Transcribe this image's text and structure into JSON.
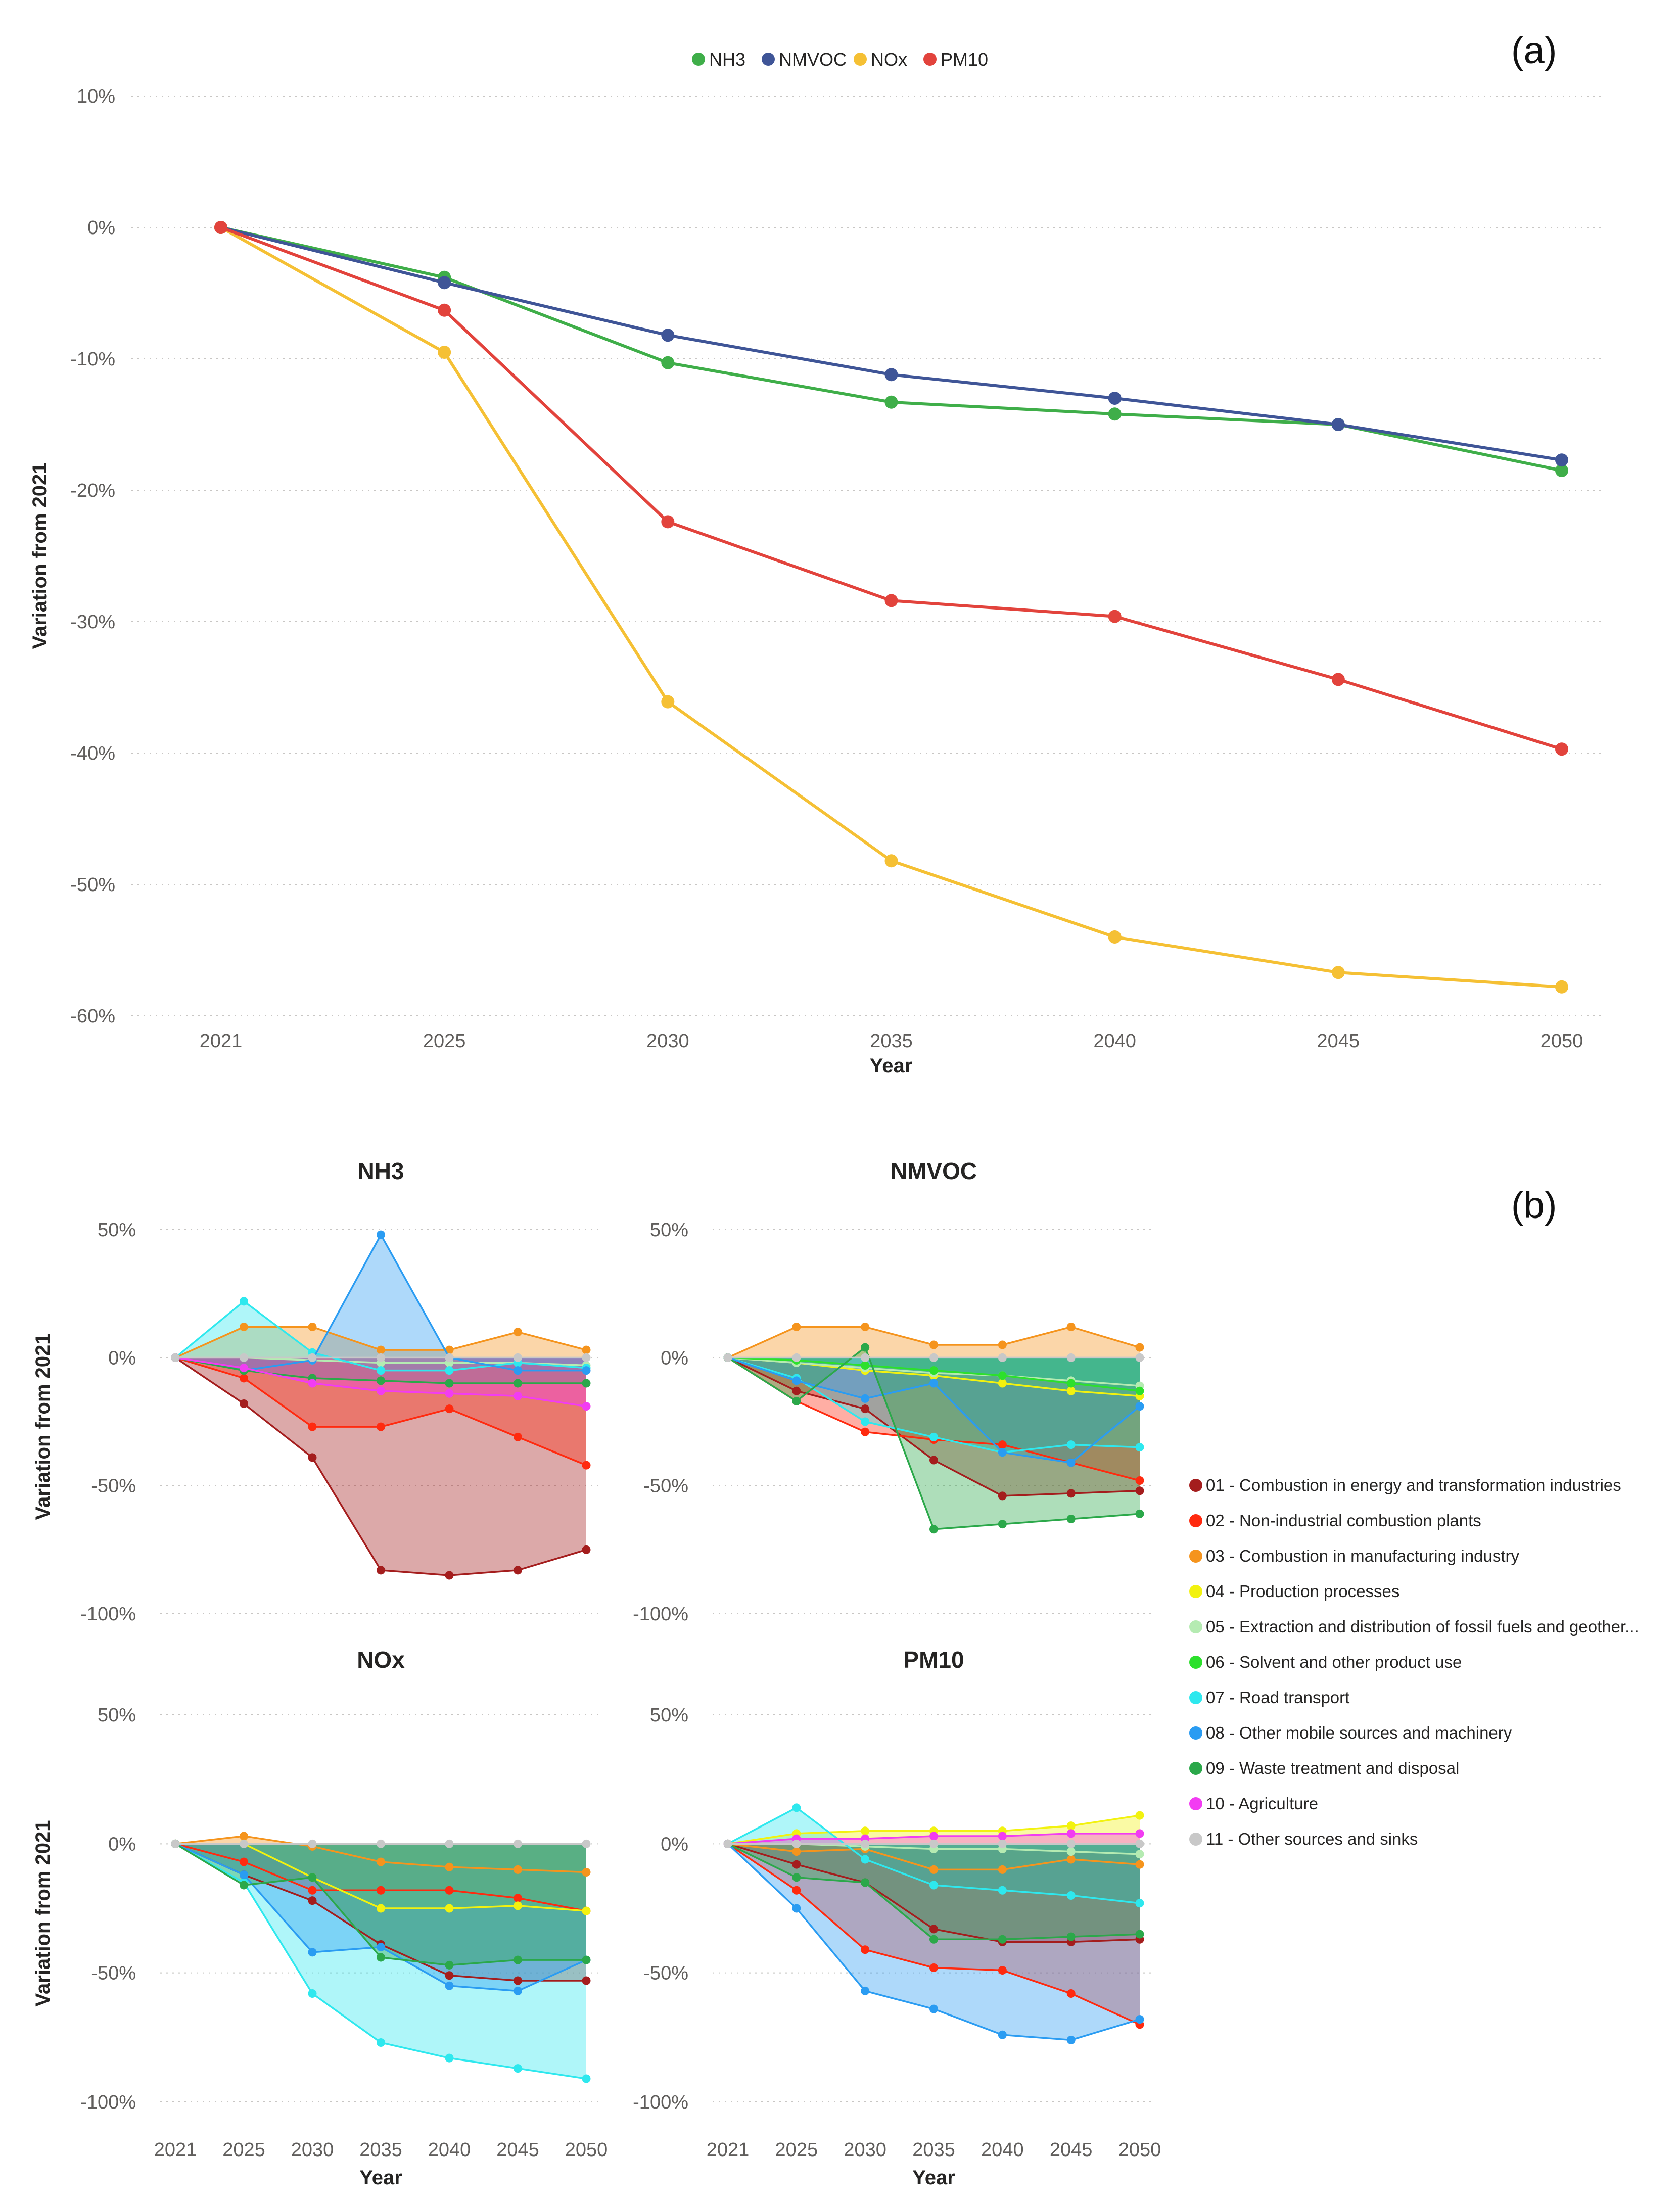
{
  "chart_data": [
    {
      "id": "a",
      "panel_label": "(a)",
      "type": "line",
      "title": "",
      "xlabel": "Year",
      "ylabel": "Variation from 2021",
      "categories": [
        "2021",
        "2025",
        "2030",
        "2035",
        "2040",
        "2045",
        "2050"
      ],
      "ylim": [
        -60,
        10
      ],
      "yticks": [
        10,
        0,
        -10,
        -20,
        -30,
        -40,
        -50,
        -60
      ],
      "ytick_labels": [
        "10%",
        "0%",
        "-10%",
        "-20%",
        "-30%",
        "-40%",
        "-50%",
        "-60%"
      ],
      "grid": true,
      "legend_position": "top-center",
      "series": [
        {
          "name": "NH3",
          "color": "#3fae49",
          "values": [
            0,
            -3.8,
            -10.3,
            -13.3,
            -14.2,
            -15.0,
            -18.5
          ]
        },
        {
          "name": "NMVOC",
          "color": "#3f5597",
          "values": [
            0,
            -4.2,
            -8.2,
            -11.2,
            -13.0,
            -15.0,
            -17.7
          ]
        },
        {
          "name": "NOx",
          "color": "#f5c034",
          "values": [
            0,
            -9.5,
            -36.1,
            -48.2,
            -54.0,
            -56.7,
            -57.8
          ]
        },
        {
          "name": "PM10",
          "color": "#e2433c",
          "values": [
            0,
            -6.3,
            -22.4,
            -28.4,
            -29.6,
            -34.4,
            -39.7
          ]
        }
      ]
    },
    {
      "id": "b",
      "panel_label": "(b)",
      "type": "area",
      "xlabel": "Year",
      "ylabel": "Variation from 2021",
      "categories": [
        "2021",
        "2025",
        "2030",
        "2035",
        "2040",
        "2045",
        "2050"
      ],
      "ylim": [
        -100,
        50
      ],
      "yticks": [
        50,
        0,
        -50,
        -100
      ],
      "ytick_labels": [
        "50%",
        "0%",
        "-50%",
        "-100%"
      ],
      "grid": true,
      "legend_position": "right",
      "sectors": [
        {
          "name": "01 - Combustion in energy and transformation industries",
          "color": "#a41d1d"
        },
        {
          "name": "02 - Non-industrial combustion plants",
          "color": "#ff2a0f"
        },
        {
          "name": "03 - Combustion in manufacturing industry",
          "color": "#f5941d"
        },
        {
          "name": "04 - Production processes",
          "color": "#f2f20f"
        },
        {
          "name": "05 - Extraction and distribution of fossil fuels and geother...",
          "color": "#b5ebb2"
        },
        {
          "name": "06 - Solvent and other product use",
          "color": "#2ce02c"
        },
        {
          "name": "07 - Road transport",
          "color": "#2ee8ee"
        },
        {
          "name": "08 - Other mobile sources and machinery",
          "color": "#2a9cf2"
        },
        {
          "name": "09 - Waste treatment and disposal",
          "color": "#2ba84a"
        },
        {
          "name": "10 - Agriculture",
          "color": "#f23cf2"
        },
        {
          "name": "11 - Other sources and sinks",
          "color": "#c8c8c8"
        }
      ],
      "panels": [
        {
          "title": "NH3",
          "series": [
            {
              "sector": 0,
              "values": [
                0,
                -18,
                -39,
                -83,
                -85,
                -83,
                -75
              ]
            },
            {
              "sector": 1,
              "values": [
                0,
                -8,
                -27,
                -27,
                -20,
                -31,
                -42
              ]
            },
            {
              "sector": 2,
              "values": [
                0,
                12,
                12,
                3,
                3,
                10,
                3
              ]
            },
            {
              "sector": 4,
              "values": [
                0,
                0,
                -1,
                -2,
                -2,
                -2,
                -3
              ]
            },
            {
              "sector": 6,
              "values": [
                0,
                22,
                2,
                -5,
                -5,
                -2,
                -4
              ]
            },
            {
              "sector": 7,
              "values": [
                0,
                -5,
                -1,
                48,
                0,
                -5,
                -5
              ]
            },
            {
              "sector": 8,
              "values": [
                0,
                -5,
                -8,
                -9,
                -10,
                -10,
                -10
              ]
            },
            {
              "sector": 9,
              "values": [
                0,
                -4,
                -10,
                -13,
                -14,
                -15,
                -19
              ]
            },
            {
              "sector": 10,
              "values": [
                0,
                0,
                0,
                0,
                0,
                0,
                0
              ]
            }
          ]
        },
        {
          "title": "NMVOC",
          "series": [
            {
              "sector": 0,
              "values": [
                0,
                -13,
                -20,
                -40,
                -54,
                -53,
                -52
              ]
            },
            {
              "sector": 1,
              "values": [
                0,
                -17,
                -29,
                -32,
                -34,
                -41,
                -48
              ]
            },
            {
              "sector": 2,
              "values": [
                0,
                12,
                12,
                5,
                5,
                12,
                4
              ]
            },
            {
              "sector": 3,
              "values": [
                0,
                -2,
                -5,
                -7,
                -10,
                -13,
                -15
              ]
            },
            {
              "sector": 4,
              "values": [
                0,
                -2,
                -4,
                -6,
                -7,
                -9,
                -11
              ]
            },
            {
              "sector": 5,
              "values": [
                0,
                -1,
                -3,
                -5,
                -7,
                -10,
                -13
              ]
            },
            {
              "sector": 6,
              "values": [
                0,
                -8,
                -25,
                -31,
                -37,
                -34,
                -35
              ]
            },
            {
              "sector": 7,
              "values": [
                0,
                -9,
                -16,
                -10,
                -37,
                -41,
                -19
              ]
            },
            {
              "sector": 8,
              "values": [
                0,
                -17,
                4,
                -67,
                -65,
                -63,
                -61
              ]
            },
            {
              "sector": 10,
              "values": [
                0,
                0,
                0,
                0,
                0,
                0,
                0
              ]
            }
          ]
        },
        {
          "title": "NOx",
          "series": [
            {
              "sector": 0,
              "values": [
                0,
                -12,
                -22,
                -39,
                -51,
                -53,
                -53
              ]
            },
            {
              "sector": 1,
              "values": [
                0,
                -7,
                -18,
                -18,
                -18,
                -21,
                -26
              ]
            },
            {
              "sector": 2,
              "values": [
                0,
                3,
                -1,
                -7,
                -9,
                -10,
                -11
              ]
            },
            {
              "sector": 3,
              "values": [
                0,
                0,
                -13,
                -25,
                -25,
                -24,
                -26
              ]
            },
            {
              "sector": 6,
              "values": [
                0,
                -15,
                -58,
                -77,
                -83,
                -87,
                -91
              ]
            },
            {
              "sector": 7,
              "values": [
                0,
                -12,
                -42,
                -40,
                -55,
                -57,
                -45
              ]
            },
            {
              "sector": 8,
              "values": [
                0,
                -16,
                -13,
                -44,
                -47,
                -45,
                -45
              ]
            },
            {
              "sector": 10,
              "values": [
                0,
                0,
                0,
                0,
                0,
                0,
                0
              ]
            }
          ]
        },
        {
          "title": "PM10",
          "series": [
            {
              "sector": 0,
              "values": [
                0,
                -8,
                -15,
                -33,
                -38,
                -38,
                -37
              ]
            },
            {
              "sector": 1,
              "values": [
                0,
                -18,
                -41,
                -48,
                -49,
                -58,
                -70
              ]
            },
            {
              "sector": 2,
              "values": [
                0,
                -3,
                -2,
                -10,
                -10,
                -6,
                -8
              ]
            },
            {
              "sector": 3,
              "values": [
                0,
                4,
                5,
                5,
                5,
                7,
                11
              ]
            },
            {
              "sector": 4,
              "values": [
                0,
                0,
                -1,
                -2,
                -2,
                -3,
                -4
              ]
            },
            {
              "sector": 6,
              "values": [
                0,
                14,
                -6,
                -16,
                -18,
                -20,
                -23
              ]
            },
            {
              "sector": 7,
              "values": [
                0,
                -25,
                -57,
                -64,
                -74,
                -76,
                -68
              ]
            },
            {
              "sector": 8,
              "values": [
                0,
                -13,
                -15,
                -37,
                -37,
                -36,
                -35
              ]
            },
            {
              "sector": 9,
              "values": [
                0,
                2,
                2,
                3,
                3,
                4,
                4
              ]
            },
            {
              "sector": 10,
              "values": [
                0,
                0,
                0,
                0,
                0,
                0,
                0
              ]
            }
          ]
        }
      ]
    }
  ]
}
